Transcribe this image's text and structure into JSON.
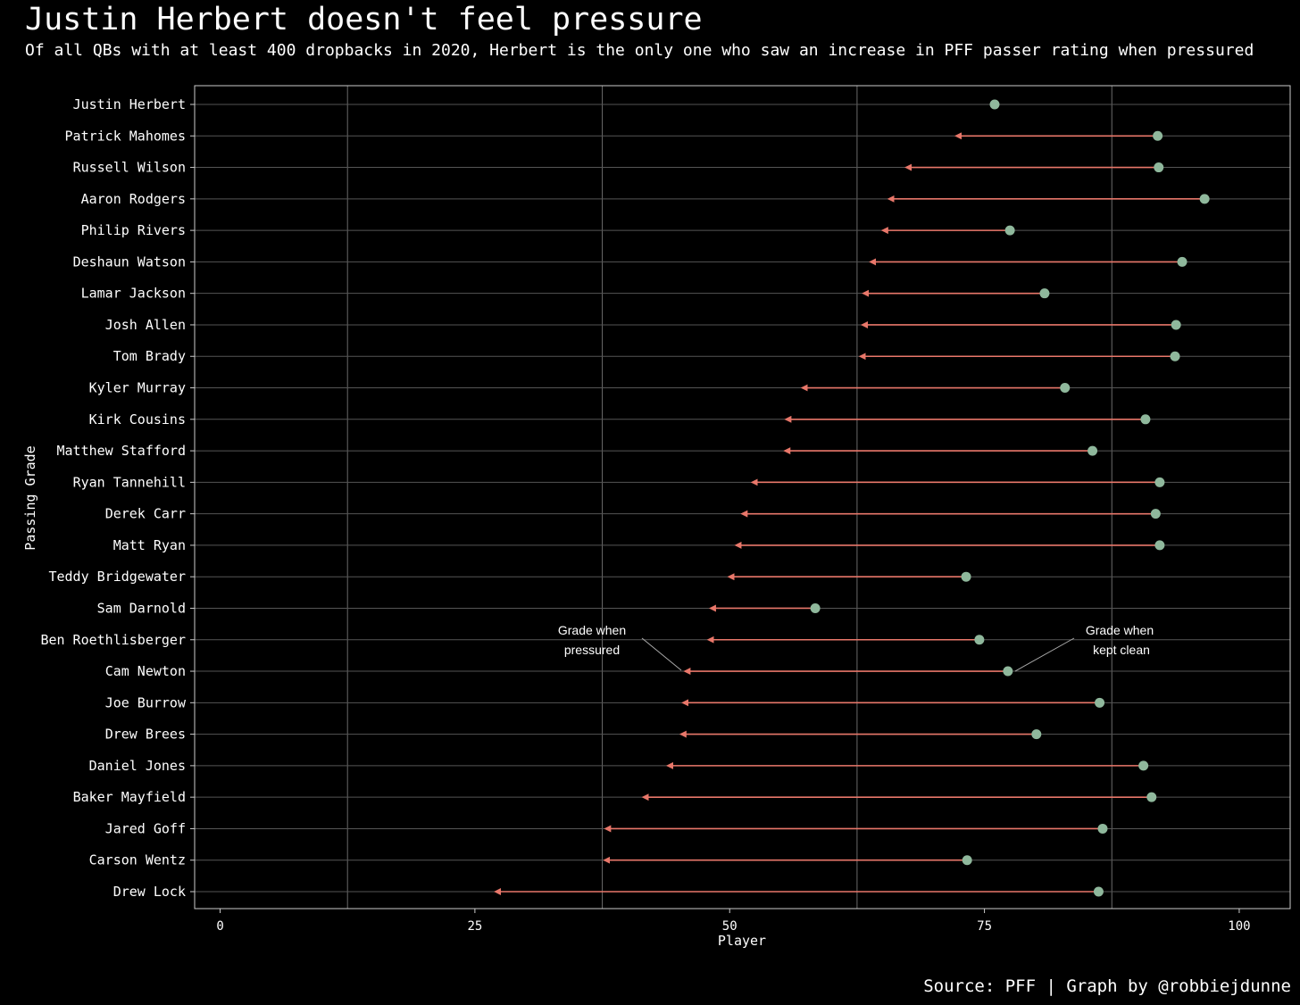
{
  "title": "Justin Herbert doesn't feel pressure",
  "subtitle": "Of all QBs with at least 400 dropbacks in 2020, Herbert is the only one who saw an increase in PFF passer rating when pressured",
  "caption": "Source: PFF | Graph by @robbiejdunne",
  "colors": {
    "background": "#000000",
    "clean_point": "#8fb89c",
    "pressured_line": "#e8776a",
    "grid": "#555555",
    "panel_border": "#cccccc"
  },
  "chart_data": {
    "type": "dumbbell",
    "xlabel": "Player",
    "ylabel": "Passing Grade",
    "xlim": [
      -2.5,
      105
    ],
    "x_ticks": [
      0,
      25,
      50,
      75,
      100
    ],
    "x_tick_labels": [
      "0",
      "25",
      "50",
      "75",
      "100"
    ],
    "grid": true,
    "annotations": [
      {
        "text_lines": [
          "Grade when",
          "pressured"
        ],
        "points_to": "Cam Newton pressured grade"
      },
      {
        "text_lines": [
          "Grade when",
          "kept clean"
        ],
        "points_to": "Cam Newton clean grade"
      }
    ],
    "players": [
      {
        "name": "Justin Herbert",
        "clean": 76.0,
        "pressured": 76.0
      },
      {
        "name": "Patrick Mahomes",
        "clean": 92.0,
        "pressured": 72.2
      },
      {
        "name": "Russell Wilson",
        "clean": 92.1,
        "pressured": 67.3
      },
      {
        "name": "Aaron Rodgers",
        "clean": 96.6,
        "pressured": 65.6
      },
      {
        "name": "Philip Rivers",
        "clean": 77.5,
        "pressured": 65.0
      },
      {
        "name": "Deshaun Watson",
        "clean": 94.4,
        "pressured": 63.8
      },
      {
        "name": "Lamar Jackson",
        "clean": 80.9,
        "pressured": 63.1
      },
      {
        "name": "Josh Allen",
        "clean": 93.8,
        "pressured": 63.0
      },
      {
        "name": "Tom Brady",
        "clean": 93.7,
        "pressured": 62.8
      },
      {
        "name": "Kyler Murray",
        "clean": 82.9,
        "pressured": 57.1
      },
      {
        "name": "Kirk Cousins",
        "clean": 90.8,
        "pressured": 55.5
      },
      {
        "name": "Matthew Stafford",
        "clean": 85.6,
        "pressured": 55.4
      },
      {
        "name": "Ryan Tannehill",
        "clean": 92.2,
        "pressured": 52.2
      },
      {
        "name": "Derek Carr",
        "clean": 91.8,
        "pressured": 51.2
      },
      {
        "name": "Matt Ryan",
        "clean": 92.2,
        "pressured": 50.6
      },
      {
        "name": "Teddy Bridgewater",
        "clean": 73.2,
        "pressured": 49.9
      },
      {
        "name": "Sam Darnold",
        "clean": 58.4,
        "pressured": 48.1
      },
      {
        "name": "Ben Roethlisberger",
        "clean": 74.5,
        "pressured": 47.9
      },
      {
        "name": "Cam Newton",
        "clean": 77.3,
        "pressured": 45.6
      },
      {
        "name": "Joe Burrow",
        "clean": 86.3,
        "pressured": 45.4
      },
      {
        "name": "Drew Brees",
        "clean": 80.1,
        "pressured": 45.2
      },
      {
        "name": "Daniel Jones",
        "clean": 90.6,
        "pressured": 43.9
      },
      {
        "name": "Baker Mayfield",
        "clean": 91.4,
        "pressured": 41.5
      },
      {
        "name": "Jared Goff",
        "clean": 86.6,
        "pressured": 37.8
      },
      {
        "name": "Carson Wentz",
        "clean": 73.3,
        "pressured": 37.7
      },
      {
        "name": "Drew Lock",
        "clean": 86.2,
        "pressured": 27.0
      }
    ]
  }
}
